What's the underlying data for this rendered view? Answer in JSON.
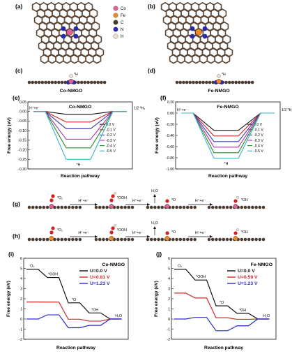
{
  "panel_labels": {
    "a": "(a)",
    "b": "(b)",
    "c": "(c)",
    "d": "(d)",
    "e": "(e)",
    "f": "(f)",
    "g": "(g)",
    "h": "(h)",
    "i": "(i)",
    "j": "(j)"
  },
  "legend_atoms": [
    {
      "label": "Co",
      "color": "#e0609a"
    },
    {
      "label": "Fe",
      "color": "#f08a20"
    },
    {
      "label": "C",
      "color": "#4a3a30"
    },
    {
      "label": "N",
      "color": "#2a2aa8"
    },
    {
      "label": "H",
      "color": "#f1dfcf"
    }
  ],
  "side_views": {
    "c": {
      "adsorbate": "*H",
      "caption": "Co-NMGO",
      "metal_color": "#e0609a"
    },
    "d": {
      "adsorbate": "*H",
      "caption": "Fe-NMGO",
      "metal_color": "#f08a20"
    }
  },
  "chart_data": [
    {
      "panel": "e",
      "type": "line",
      "title": "Co-NMGO",
      "xlabel": "Reaction pathway",
      "ylabel": "Free energy (eV)",
      "ylim": [
        -0.3,
        0.05
      ],
      "yticks": [
        "0.05",
        "0.00",
        "-0.05",
        "-0.10",
        "-0.15",
        "-0.20",
        "-0.25",
        "-0.30"
      ],
      "annotations": {
        "start": "H⁺+e⁻",
        "end": "1/2 *H₂",
        "mid": "*H"
      },
      "series": [
        {
          "name": "0.0 V",
          "color": "#111111",
          "values": [
            0,
            -0.015,
            0
          ]
        },
        {
          "name": "-0.1 V",
          "color": "#d02a2a",
          "values": [
            0,
            -0.055,
            0
          ]
        },
        {
          "name": "-0.2 V",
          "color": "#3a3ab0",
          "values": [
            0,
            -0.09,
            0
          ]
        },
        {
          "name": "-0.3 V",
          "color": "#b030b0",
          "values": [
            0,
            -0.145,
            0
          ]
        },
        {
          "name": "-0.4 V",
          "color": "#2a8a2a",
          "values": [
            0,
            -0.19,
            0
          ]
        },
        {
          "name": "-0.5 V",
          "color": "#36b6c8",
          "values": [
            0,
            -0.25,
            0
          ]
        }
      ]
    },
    {
      "panel": "f",
      "type": "line",
      "title": "Fe-NMGO",
      "xlabel": "Reaction pathway",
      "ylabel": "Free energy (eV)",
      "ylim": [
        -1.0,
        0.2
      ],
      "yticks": [
        "0.20",
        "0.00",
        "-0.20",
        "-0.40",
        "-0.60",
        "-0.80",
        "-1.00"
      ],
      "annotations": {
        "start": "H⁺+e⁻",
        "end": "1/2 *H₂",
        "mid": "*H"
      },
      "series": [
        {
          "name": "0.0 V",
          "color": "#111111",
          "values": [
            0,
            -0.31,
            0
          ]
        },
        {
          "name": "-0.1 V",
          "color": "#d02a2a",
          "values": [
            0,
            -0.41,
            0
          ]
        },
        {
          "name": "-0.2 V",
          "color": "#3a3ab0",
          "values": [
            0,
            -0.51,
            0
          ]
        },
        {
          "name": "-0.3 V",
          "color": "#b030b0",
          "values": [
            0,
            -0.61,
            0
          ]
        },
        {
          "name": "-0.4 V",
          "color": "#2a8a2a",
          "values": [
            0,
            -0.71,
            0
          ]
        },
        {
          "name": "-0.5 V",
          "color": "#36b6c8",
          "values": [
            0,
            -0.81,
            0
          ]
        }
      ]
    },
    {
      "panel": "i",
      "type": "line",
      "title": "Co-NMGO",
      "xlabel": "Reaction pathway",
      "ylabel": "Free energy (eV)",
      "ylim": [
        -2,
        6
      ],
      "yticks": [
        "6",
        "5",
        "4",
        "3",
        "2",
        "1",
        "0",
        "-1",
        "-2"
      ],
      "labels": [
        "O₂",
        "*OOH",
        "*O",
        "*OH",
        "H₂O"
      ],
      "series": [
        {
          "name": "U=0.0 V",
          "color": "#111111",
          "values": [
            4.92,
            4.1,
            1.6,
            0.6,
            0
          ]
        },
        {
          "name": "U=0.81 V",
          "color": "#d02a2a",
          "values": [
            1.68,
            1.67,
            -0.02,
            -0.21,
            0
          ]
        },
        {
          "name": "U=1.23 V",
          "color": "#2a2ad0",
          "values": [
            0,
            0.41,
            -0.86,
            -0.63,
            0
          ]
        }
      ]
    },
    {
      "panel": "j",
      "type": "line",
      "title": "Fe-NMGO",
      "xlabel": "Reaction pathway",
      "ylabel": "Free energy (eV)",
      "ylim": [
        -2,
        6
      ],
      "yticks": [
        "6",
        "5",
        "4",
        "3",
        "2",
        "1",
        "0",
        "-1",
        "-2"
      ],
      "labels": [
        "O₂",
        "*OOH",
        "*O",
        "*OH",
        "H₂O"
      ],
      "series": [
        {
          "name": "U=0.0 V",
          "color": "#111111",
          "values": [
            4.92,
            3.85,
            1.3,
            0.56,
            0
          ]
        },
        {
          "name": "U=0.59 V",
          "color": "#d02a2a",
          "values": [
            2.56,
            2.08,
            0.12,
            -0.03,
            0
          ]
        },
        {
          "name": "U=1.23 V",
          "color": "#2a2ad0",
          "values": [
            0,
            0.16,
            -1.16,
            -0.67,
            0
          ]
        }
      ]
    }
  ],
  "pathways": {
    "g": {
      "metal_color": "#e0609a",
      "o2": "*O₂",
      "ooh": "*OOH",
      "o": "*O",
      "oh": "*OH",
      "step": "H⁺+e⁻",
      "water": "H₂O"
    },
    "h": {
      "metal_color": "#f08a20",
      "o2": "*O₂",
      "ooh": "*OOH",
      "o": "*O",
      "oh": "*OH",
      "step": "H⁺+e⁻",
      "water": "H₂O"
    }
  }
}
